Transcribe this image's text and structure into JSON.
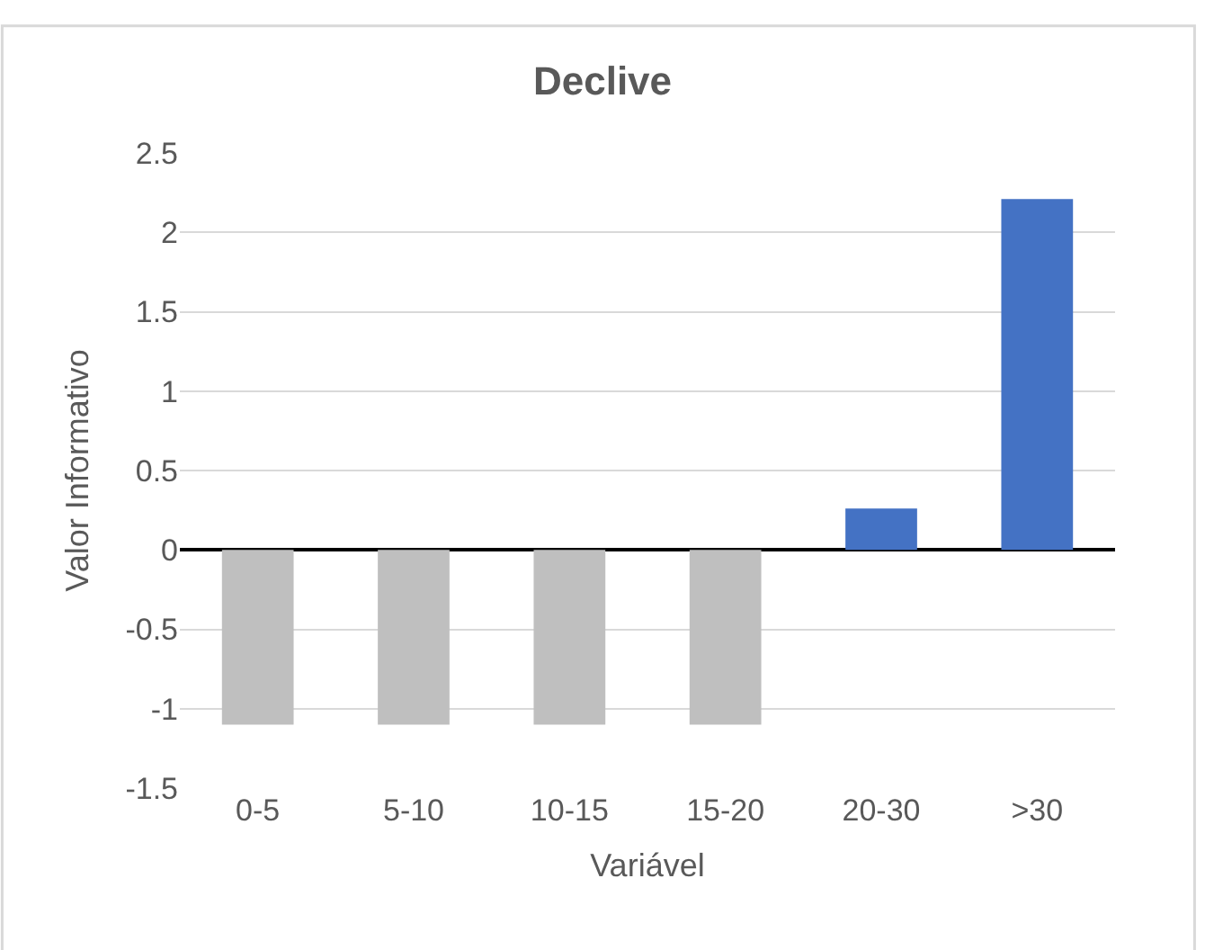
{
  "chart_data": {
    "type": "bar",
    "title": "Declive",
    "xlabel": "Variável",
    "ylabel": "Valor Informativo",
    "categories": [
      "0-5",
      "5-10",
      "10-15",
      "15-20",
      "20-30",
      ">30"
    ],
    "values": [
      -1.1,
      -1.1,
      -1.1,
      -1.1,
      0.26,
      2.21
    ],
    "colors": [
      "#bfbfbf",
      "#bfbfbf",
      "#bfbfbf",
      "#bfbfbf",
      "#4472c4",
      "#4472c4"
    ],
    "ylim": [
      -1.5,
      2.5
    ],
    "yticks": [
      -1.5,
      -1,
      -0.5,
      0,
      0.5,
      1,
      1.5,
      2,
      2.5
    ],
    "grid": "y",
    "legend": false
  }
}
